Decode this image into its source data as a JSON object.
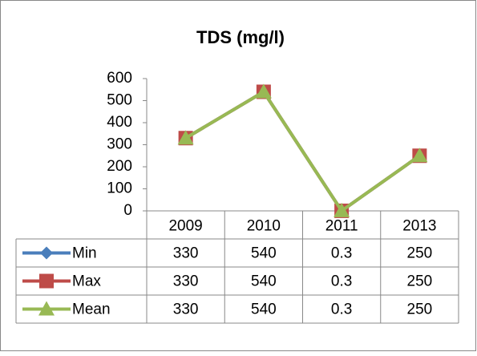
{
  "chart_data": {
    "type": "line",
    "title": "TDS (mg/l)",
    "categories": [
      "2009",
      "2010",
      "2011",
      "2013"
    ],
    "series": [
      {
        "name": "Min",
        "color": "#4a7ebb",
        "marker": "diamond",
        "values": [
          330,
          540,
          0.3,
          250
        ]
      },
      {
        "name": "Max",
        "color": "#be4b48",
        "marker": "square",
        "values": [
          330,
          540,
          0.3,
          250
        ]
      },
      {
        "name": "Mean",
        "color": "#98b954",
        "marker": "triangle",
        "values": [
          330,
          540,
          0.3,
          250
        ]
      }
    ],
    "ylim": [
      0,
      600
    ],
    "yticks": [
      0,
      100,
      200,
      300,
      400,
      500,
      600
    ],
    "grid": false,
    "data_table": true
  }
}
